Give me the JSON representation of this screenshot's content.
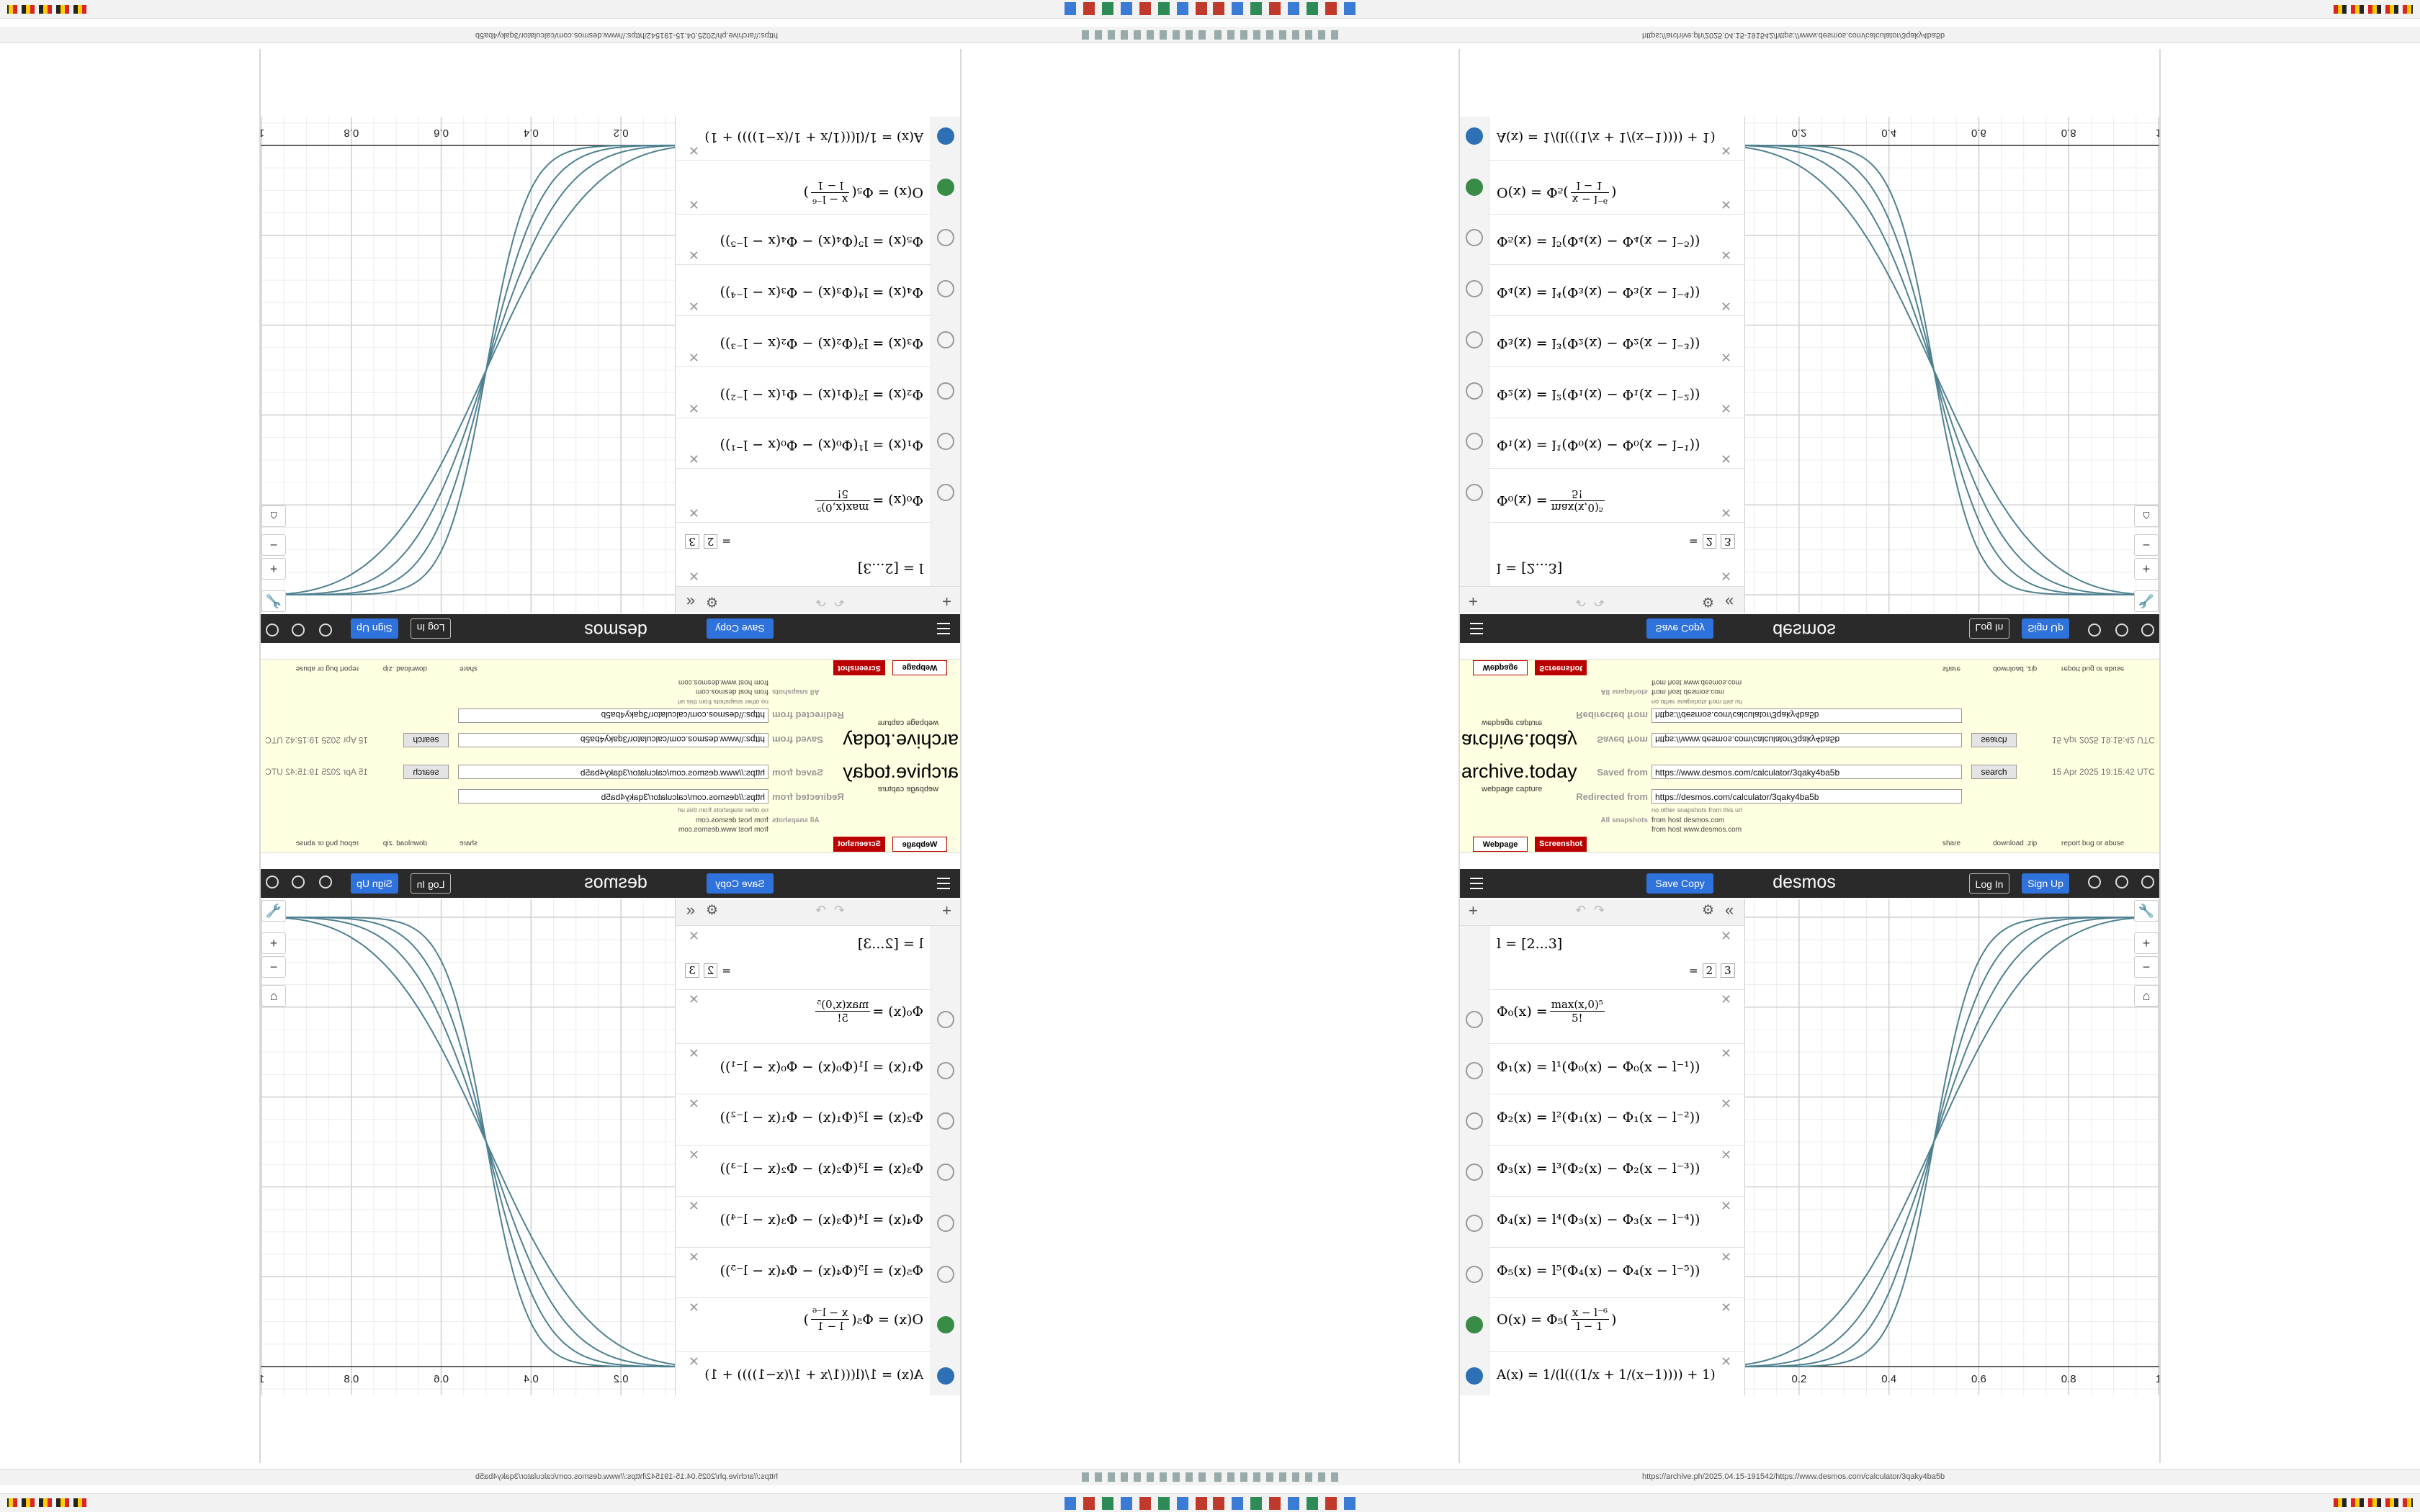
{
  "browser": {
    "url": "https://archive.ph/2025.04.15-191542/https://www.desmos.com/calculator/3qaky4ba5b"
  },
  "archive": {
    "logo": "archive.today",
    "tagline": "webpage capture",
    "saved_label": "Saved from",
    "saved_url": "https://www.desmos.com/calculator/3qaky4ba5b",
    "search": "search",
    "date": "15 Apr 2025 19:15:42 UTC",
    "redirected_label": "Redirected from",
    "redirected_url": "https://desmos.com/calculator/3qaky4ba5b",
    "no_other": "no other snapshots from this url",
    "all_label": "All snapshots",
    "host1": "from host desmos.com",
    "host2": "from host www.desmos.com",
    "tabs": [
      "Webpage",
      "Screenshot"
    ],
    "links": [
      "share",
      "download .zip",
      "report bug or abuse"
    ]
  },
  "desmos": {
    "logo": "desmos",
    "save": "Save Copy",
    "login": "Log In",
    "signup": "Sign Up"
  },
  "expressions": {
    "e0": {
      "text": "l = [2...3]",
      "sign": "=",
      "from": 2,
      "to": 3
    },
    "e1": {
      "lhs": "Φ₀(x) =",
      "num": "max(x,0)⁵",
      "den": "5!"
    },
    "e2": {
      "text": "Φ₁(x) = l¹(Φ₀(x) − Φ₀(x − l⁻¹))"
    },
    "e3": {
      "text": "Φ₂(x) = l²(Φ₁(x) − Φ₁(x − l⁻²))"
    },
    "e4": {
      "text": "Φ₃(x) = l³(Φ₂(x) − Φ₂(x − l⁻³))"
    },
    "e5": {
      "text": "Φ₄(x) = l⁴(Φ₃(x) − Φ₃(x − l⁻⁴))"
    },
    "e6": {
      "text": "Φ₅(x) = l⁵(Φ₄(x) − Φ₄(x − l⁻⁵))"
    },
    "e7": {
      "lhs": "O(x) = Φ₅(",
      "num": "x − l⁻⁶",
      "den": "l − 1",
      "rhs": ")"
    },
    "e8": {
      "text": "A(x) = 1/(l(((1/x + 1/(x−1)))) + 1)"
    }
  },
  "chart_data": {
    "type": "line",
    "xlim": [
      0.08,
      1.008
    ],
    "ylim": [
      -0.064,
      1.04
    ],
    "xticks": [
      0.2,
      0.4,
      0.6,
      0.8,
      1
    ],
    "grid": true
  }
}
